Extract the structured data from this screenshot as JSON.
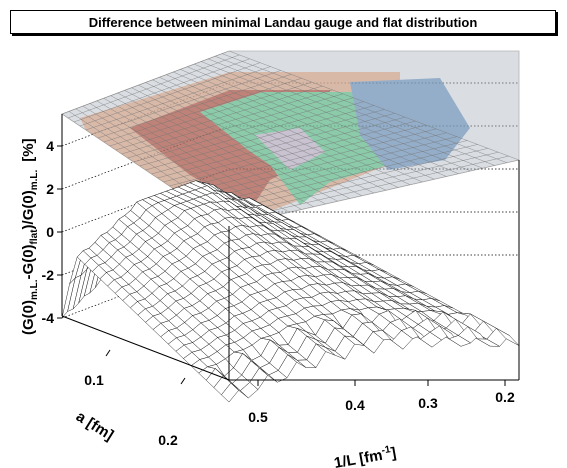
{
  "chart_data": {
    "type": "surface",
    "title": "Difference between minimal Landau gauge and flat distribution",
    "zlabel": {
      "t1": "(G(0)",
      "s1": "m.L.",
      "t2": "-G(0)",
      "s2": "flat",
      "t3": ")/G(0)",
      "s3": "m.L.",
      "t4": "[%]"
    },
    "xlabel": {
      "base": "1/L [fm",
      "sup": "-1",
      "close": "]"
    },
    "ylabel": "a [fm]",
    "z_ticks": [
      "-4",
      "-2",
      "0",
      "2",
      "4"
    ],
    "x_ticks": [
      "0.5",
      "0.4",
      "0.3",
      "0.2"
    ],
    "y_ticks": [
      "0.1",
      "0.2"
    ],
    "z_range": [
      -5,
      5
    ],
    "contour_colors": [
      "#b05040",
      "#d8a488",
      "#62c08c",
      "#6f94bc",
      "#c0b4c8"
    ]
  }
}
